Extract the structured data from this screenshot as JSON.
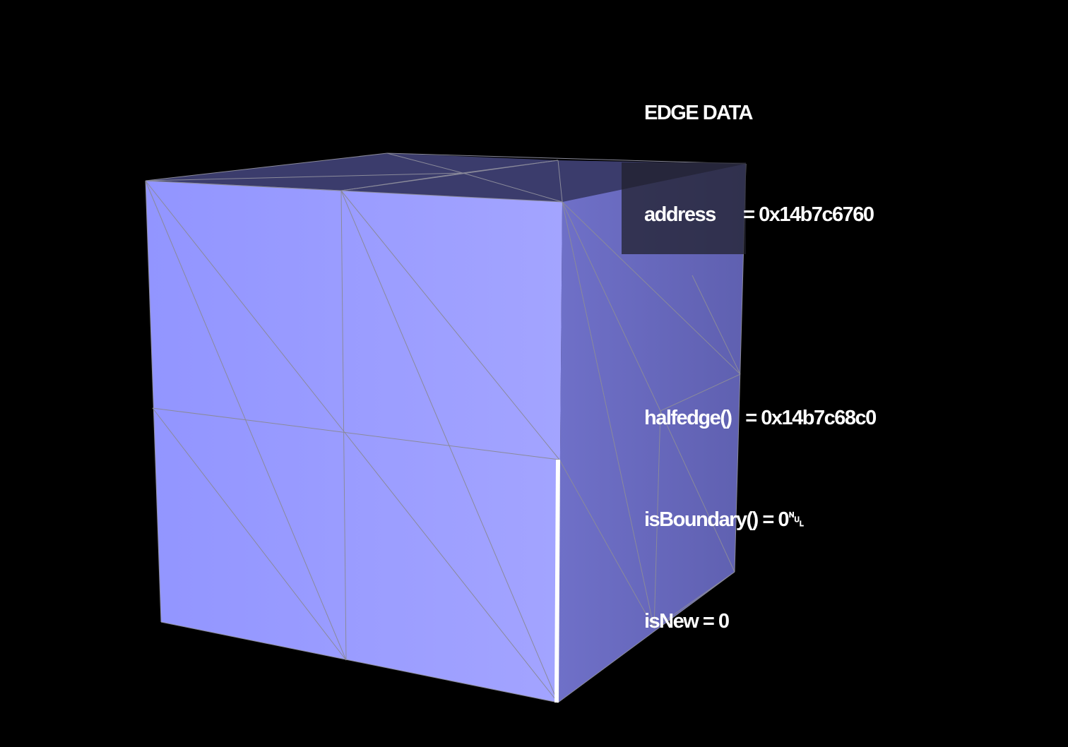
{
  "edge_data": {
    "title": "EDGE DATA",
    "address_line": "address      = 0x14b7c6760",
    "halfedge_line": "halfedge()   = 0x14b7c68c0",
    "is_boundary_line": "isBoundary() = 0␀",
    "is_new_line": "isNew = 0"
  },
  "scene": {
    "background_color": "#000000",
    "front_face_color": "#9a9cff",
    "side_face_color": "#6a6bc0",
    "top_face_color": "#3c3d6e",
    "wire_color": "#8a8a9a",
    "selected_edge_color": "#ffffff"
  }
}
